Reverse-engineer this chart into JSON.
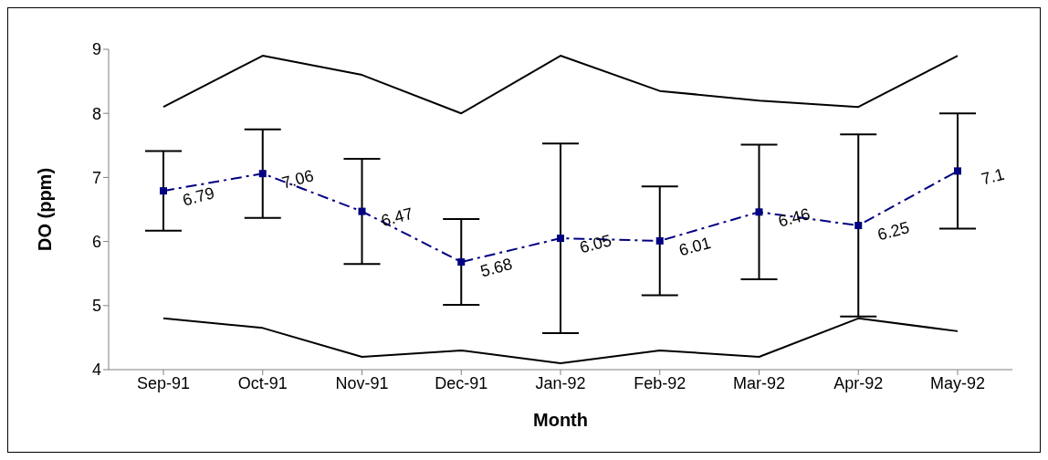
{
  "chart_data": {
    "type": "line",
    "xlabel": "Month",
    "ylabel": "DO (ppm)",
    "categories": [
      "Sep-91",
      "Oct-91",
      "Nov-91",
      "Dec-91",
      "Jan-92",
      "Feb-92",
      "Mar-92",
      "Apr-92",
      "May-92"
    ],
    "series": [
      {
        "color": "#000000",
        "values": [
          8.1,
          8.9,
          8.6,
          8.0,
          8.9,
          8.35,
          8.2,
          8.1,
          8.9
        ],
        "marker": "none",
        "line_style": "solid"
      },
      {
        "color": "#000080",
        "values": [
          6.79,
          7.06,
          6.47,
          5.68,
          6.05,
          6.01,
          6.46,
          6.25,
          7.1
        ],
        "errors": [
          0.62,
          0.69,
          0.82,
          0.67,
          1.48,
          0.85,
          1.05,
          1.42,
          0.9
        ],
        "value_labels": [
          "6.79",
          "7.06",
          "6.47",
          "5.68",
          "6.05",
          "6.01",
          "6.46",
          "6.25",
          "7.1"
        ],
        "marker": "square",
        "line_style": "dashed"
      },
      {
        "color": "#000000",
        "values": [
          4.8,
          4.65,
          4.2,
          4.3,
          4.1,
          4.3,
          4.2,
          4.8,
          4.6
        ],
        "marker": "none",
        "line_style": "solid"
      }
    ],
    "ylim": [
      4,
      9
    ],
    "yticks": [
      4,
      5,
      6,
      7,
      8,
      9
    ],
    "grid": false
  }
}
